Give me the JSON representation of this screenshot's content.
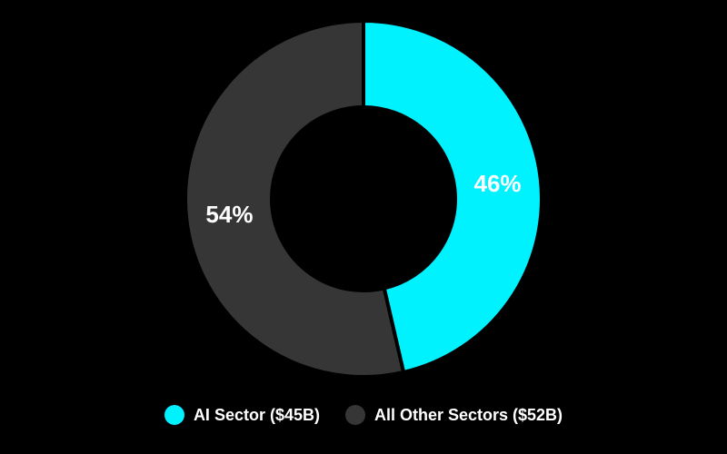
{
  "chart_data": {
    "type": "pie",
    "subtype": "donut",
    "series": [
      {
        "name": "AI Sector ($45B)",
        "value": 45,
        "percent_label": "46%",
        "color": "#00f2ff"
      },
      {
        "name": "All Other Sectors ($52B)",
        "value": 52,
        "percent_label": "54%",
        "color": "#363636"
      }
    ],
    "legend_position": "bottom-center",
    "background": "#000000",
    "separator_color": "#000000"
  }
}
